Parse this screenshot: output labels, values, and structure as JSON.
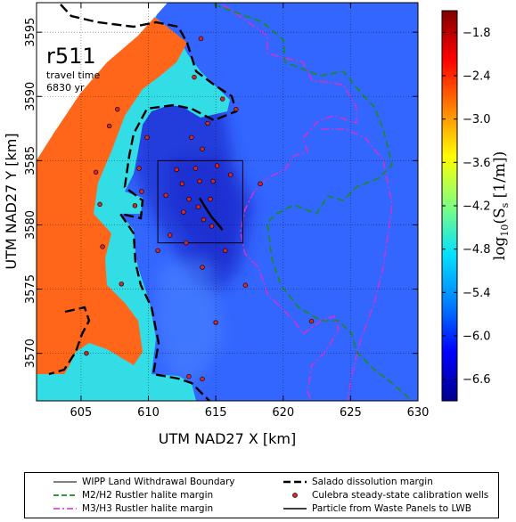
{
  "map": {
    "label": "r511",
    "info_line1": "travel time",
    "info_line2": "6830 yr",
    "xlabel": "UTM NAD27 X [km]",
    "ylabel": "UTM NAD27 Y [km]",
    "x_ticks": [
      "605",
      "610",
      "615",
      "620",
      "625",
      "630"
    ],
    "y_ticks": [
      "3595",
      "3590",
      "3585",
      "3580",
      "3575",
      "3570"
    ],
    "x_range_km": [
      601.7,
      630.0
    ],
    "y_range_km": [
      3566.3,
      3597.3
    ]
  },
  "colorbar": {
    "label": "log10(Ss [1/m])",
    "label_base": "log",
    "label_sub": "10",
    "label_rest": "(S",
    "label_sub2": "s",
    "label_unit": " [1/m])",
    "ticks": [
      "−1.8",
      "−2.4",
      "−3.0",
      "−3.6",
      "−4.2",
      "−4.8",
      "−5.4",
      "−6.0",
      "−6.6"
    ],
    "range": [
      -6.9,
      -1.5
    ],
    "colors": [
      "#00008b",
      "#0000ff",
      "#0080ff",
      "#00e0ff",
      "#80ff80",
      "#ffff00",
      "#ff8000",
      "#ff0000",
      "#800000"
    ]
  },
  "legend": {
    "items": [
      {
        "label": "WIPP Land Withdrawal Boundary",
        "style": "thin-solid",
        "color": "#000000"
      },
      {
        "label": "Salado dissolution margin",
        "style": "bold-dashed",
        "color": "#000000"
      },
      {
        "label": "M2/H2 Rustler halite margin",
        "style": "dashed",
        "color": "#1a8c1a"
      },
      {
        "label": "Culebra steady-state calibration wells",
        "style": "dot",
        "color": "#d62728"
      },
      {
        "label": "M3/H3 Rustler halite margin",
        "style": "dash-dot",
        "color": "#cc33cc"
      },
      {
        "label": "Particle from Waste Panels to LWB",
        "style": "solid",
        "color": "#000000"
      }
    ]
  },
  "colors": {
    "deep_blue": "#1e3fd8",
    "mid_blue": "#2d5cf0",
    "background_blue": "#3366ff",
    "cyan": "#33e0e6",
    "orange": "#ff6a1a",
    "well_red": "#d62728",
    "m2_green": "#1a8c1a",
    "m3_magenta": "#cc33cc"
  },
  "wells": [
    [
      605.4,
      3570.0
    ],
    [
      606.1,
      3584.1
    ],
    [
      606.4,
      3581.6
    ],
    [
      606.6,
      3578.3
    ],
    [
      607.1,
      3587.7
    ],
    [
      607.7,
      3589.0
    ],
    [
      608.0,
      3575.4
    ],
    [
      609.0,
      3581.5
    ],
    [
      609.3,
      3584.4
    ],
    [
      609.5,
      3582.6
    ],
    [
      609.9,
      3586.8
    ],
    [
      610.7,
      3578.0
    ],
    [
      611.3,
      3582.3
    ],
    [
      611.6,
      3579.2
    ],
    [
      612.1,
      3584.3
    ],
    [
      612.5,
      3583.2
    ],
    [
      612.6,
      3581.0
    ],
    [
      612.8,
      3578.6
    ],
    [
      613.0,
      3582.0
    ],
    [
      613.2,
      3586.8
    ],
    [
      613.4,
      3591.5
    ],
    [
      613.5,
      3584.4
    ],
    [
      613.7,
      3581.4
    ],
    [
      613.8,
      3583.4
    ],
    [
      613.9,
      3594.5
    ],
    [
      614.0,
      3576.7
    ],
    [
      614.0,
      3585.9
    ],
    [
      614.1,
      3580.4
    ],
    [
      614.4,
      3587.9
    ],
    [
      614.6,
      3582.0
    ],
    [
      614.7,
      3579.9
    ],
    [
      614.8,
      3583.4
    ],
    [
      615.0,
      3572.4
    ],
    [
      615.1,
      3584.6
    ],
    [
      615.5,
      3589.8
    ],
    [
      615.7,
      3578.0
    ],
    [
      616.1,
      3583.9
    ],
    [
      616.5,
      3589.0
    ],
    [
      617.2,
      3575.3
    ],
    [
      618.3,
      3583.2
    ],
    [
      622.1,
      3572.5
    ],
    [
      613.0,
      3568.2
    ],
    [
      614.0,
      3568.0
    ]
  ],
  "particle_path": [
    [
      613.8,
      3582.1
    ],
    [
      614.2,
      3581.4
    ],
    [
      614.7,
      3580.6
    ],
    [
      615.2,
      3580.0
    ],
    [
      615.5,
      3579.6
    ]
  ],
  "wipp_boundary": [
    [
      610.7,
      3578.6
    ],
    [
      617.0,
      3578.6
    ],
    [
      617.0,
      3585.0
    ],
    [
      610.7,
      3585.0
    ]
  ]
}
